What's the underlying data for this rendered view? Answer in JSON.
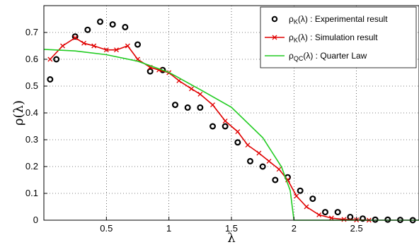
{
  "chart_data": {
    "type": "line",
    "xlabel": "λ",
    "ylabel": "ρ(λ)",
    "xlim": [
      0,
      3
    ],
    "ylim": [
      0,
      0.8
    ],
    "xticks": [
      0.5,
      1,
      1.5,
      2,
      2.5
    ],
    "xtick_labels": [
      "0.5",
      "1",
      "1.5",
      "2",
      "2.5"
    ],
    "yticks": [
      0,
      0.1,
      0.2,
      0.3,
      0.4,
      0.5,
      0.6,
      0.7
    ],
    "ytick_labels": [
      "0",
      "0.1",
      "0.2",
      "0.3",
      "0.4",
      "0.5",
      "0.6",
      "0.7"
    ],
    "grid": "dotted",
    "legend_position": "top-right",
    "series": [
      {
        "name": "ρK(λ) : Experimental result",
        "label_main": "ρ",
        "label_sub": "K",
        "label_rest": "(λ) : Experimental result",
        "style": "markers",
        "color": "#000000",
        "x": [
          0.05,
          0.1,
          0.25,
          0.35,
          0.45,
          0.55,
          0.65,
          0.75,
          0.85,
          0.95,
          1.05,
          1.15,
          1.25,
          1.35,
          1.45,
          1.55,
          1.65,
          1.75,
          1.85,
          1.95,
          2.05,
          2.15,
          2.25,
          2.35,
          2.45,
          2.55,
          2.65,
          2.75,
          2.85,
          2.95
        ],
        "y": [
          0.525,
          0.6,
          0.685,
          0.71,
          0.74,
          0.73,
          0.72,
          0.655,
          0.555,
          0.56,
          0.43,
          0.42,
          0.42,
          0.35,
          0.35,
          0.29,
          0.22,
          0.2,
          0.15,
          0.16,
          0.11,
          0.08,
          0.03,
          0.03,
          0.012,
          0.006,
          0.002,
          0.002,
          0.001,
          0.0
        ],
        "marker": "circle"
      },
      {
        "name": "ρK(λ) : Simulation result",
        "label_main": "ρ",
        "label_sub": "K",
        "label_rest": "(λ) : Simulation result",
        "style": "line+markers",
        "color": "#e00000",
        "x": [
          0.05,
          0.15,
          0.25,
          0.32,
          0.4,
          0.5,
          0.58,
          0.67,
          0.75,
          0.85,
          0.92,
          1.0,
          1.08,
          1.18,
          1.25,
          1.35,
          1.45,
          1.55,
          1.63,
          1.72,
          1.8,
          1.88,
          1.95,
          2.02,
          2.1,
          2.2,
          2.3,
          2.4,
          2.5,
          2.6
        ],
        "y": [
          0.6,
          0.65,
          0.68,
          0.66,
          0.65,
          0.635,
          0.635,
          0.65,
          0.6,
          0.57,
          0.56,
          0.55,
          0.52,
          0.49,
          0.47,
          0.43,
          0.37,
          0.33,
          0.28,
          0.25,
          0.22,
          0.19,
          0.15,
          0.09,
          0.05,
          0.02,
          0.008,
          0.003,
          0.001,
          0.0
        ],
        "marker": "x"
      },
      {
        "name": "ρQC(λ) : Quarter Law",
        "label_main": "ρ",
        "label_sub": "QC",
        "label_rest": "(λ) : Quarter Law",
        "style": "line",
        "color": "#22cc22",
        "x": [
          0.0,
          0.25,
          0.5,
          0.75,
          1.0,
          1.25,
          1.5,
          1.75,
          1.9,
          1.97,
          2.0,
          2.5,
          3.0
        ],
        "y": [
          0.637,
          0.631,
          0.617,
          0.593,
          0.551,
          0.487,
          0.421,
          0.308,
          0.199,
          0.111,
          0.0,
          0.0,
          0.0
        ]
      }
    ]
  }
}
